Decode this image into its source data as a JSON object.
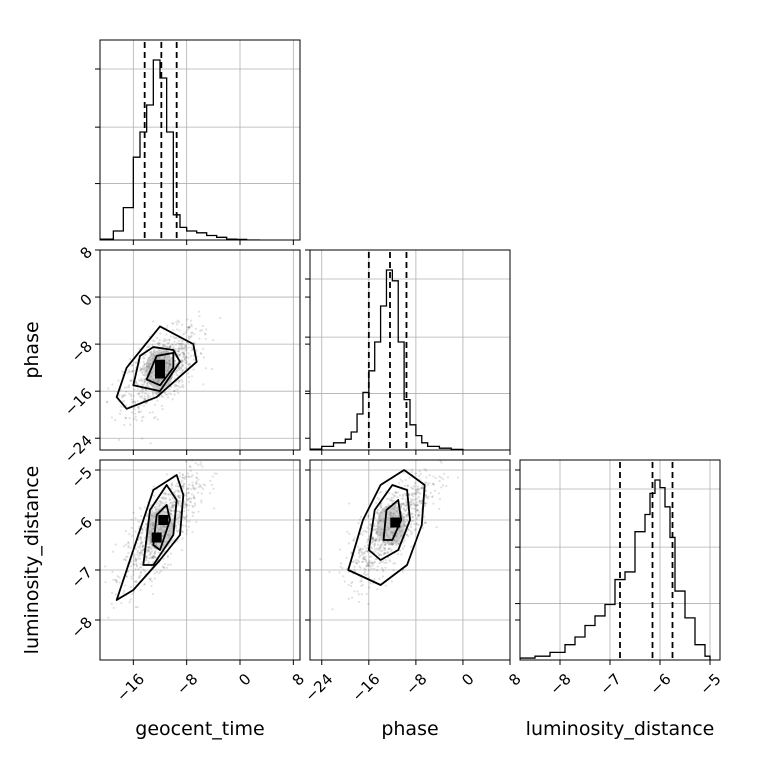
{
  "chart_data": {
    "type": "corner",
    "parameters": [
      "geocent_time",
      "phase",
      "luminosity_distance"
    ],
    "axis_labels": {
      "x": [
        "geocent_time",
        "phase",
        "luminosity_distance"
      ],
      "y": [
        "phase",
        "luminosity_distance"
      ]
    },
    "ranges": {
      "geocent_time": [
        -21,
        9
      ],
      "phase": [
        -26,
        8
      ],
      "luminosity_distance": [
        -8.8,
        -4.8
      ]
    },
    "ticks": {
      "geocent_time": [
        -16,
        -8,
        0,
        8
      ],
      "phase": [
        -24,
        -16,
        -8,
        0,
        8
      ],
      "luminosity_distance": [
        -8,
        -7,
        -6,
        -5
      ]
    },
    "tick_labels": {
      "geocent_time": [
        "−16",
        "−8",
        "0",
        "8"
      ],
      "phase": [
        "−24",
        "−16",
        "−8",
        "0",
        "8"
      ],
      "luminosity_distance": [
        "−8",
        "−7",
        "−6",
        "−5"
      ]
    },
    "grid": true,
    "histograms": [
      {
        "parameter": "geocent_time",
        "bin_edges": [
          -21,
          -19,
          -17.5,
          -16,
          -15,
          -14,
          -13,
          -12,
          -11,
          -10,
          -9,
          -8,
          -6.5,
          -5,
          -3.5,
          -2,
          -0.5,
          1,
          3
        ],
        "counts": [
          0.5,
          5,
          18,
          46,
          60,
          75,
          100,
          90,
          60,
          14,
          7,
          5,
          4,
          2.5,
          1.5,
          0.5,
          0.3,
          0
        ],
        "quantiles": [
          -14.3,
          -11.8,
          -9.5
        ]
      },
      {
        "parameter": "phase",
        "bin_edges": [
          -26,
          -24,
          -22,
          -20,
          -19,
          -18,
          -17,
          -16,
          -15,
          -14,
          -13,
          -12,
          -11,
          -10,
          -9,
          -8,
          -7,
          -6,
          -4,
          -2,
          0
        ],
        "counts": [
          0.5,
          2,
          4,
          6,
          10,
          20,
          32,
          44,
          60,
          80,
          100,
          94,
          60,
          28,
          14,
          8,
          4,
          2,
          1,
          0.3
        ],
        "quantiles": [
          -16,
          -12.4,
          -9.6
        ]
      },
      {
        "parameter": "luminosity_distance",
        "bin_edges": [
          -8.8,
          -8.5,
          -8.2,
          -7.9,
          -7.7,
          -7.5,
          -7.3,
          -7.1,
          -6.9,
          -6.7,
          -6.5,
          -6.3,
          -6.2,
          -6.1,
          -6.0,
          -5.9,
          -5.8,
          -5.7,
          -5.5,
          -5.3,
          -5.1,
          -5.0
        ],
        "counts": [
          1,
          2,
          4,
          8,
          12,
          18,
          23,
          29,
          42,
          46,
          67,
          76,
          87,
          94,
          90,
          80,
          64,
          36,
          22,
          8,
          2
        ],
        "quantiles": [
          -6.8,
          -6.15,
          -5.75
        ]
      }
    ],
    "scatter_2d": [
      {
        "x_parameter": "geocent_time",
        "y_parameter": "phase",
        "center": [
          -11.8,
          -12.4
        ],
        "sigma": [
          2.8,
          3.5
        ],
        "correlation": 0.6,
        "contours": [
          [
            [
              -14,
              -14
            ],
            [
              -12.5,
              -10
            ],
            [
              -10,
              -9.5
            ],
            [
              -10,
              -12
            ],
            [
              -12,
              -15
            ],
            [
              -14,
              -14
            ]
          ],
          [
            [
              -16,
              -15
            ],
            [
              -15,
              -10
            ],
            [
              -13,
              -8.5
            ],
            [
              -10,
              -9
            ],
            [
              -9,
              -11
            ],
            [
              -12,
              -16
            ],
            [
              -16,
              -15
            ]
          ],
          [
            [
              -18.5,
              -17
            ],
            [
              -17,
              -12
            ],
            [
              -12,
              -5
            ],
            [
              -7,
              -8
            ],
            [
              -6.5,
              -11
            ],
            [
              -8,
              -12.5
            ],
            [
              -12.5,
              -17
            ],
            [
              -17,
              -19
            ],
            [
              -18.5,
              -17
            ]
          ]
        ],
        "peak_bins": [
          [
            -12,
            -13
          ],
          [
            -12,
            -11.5
          ]
        ]
      },
      {
        "x_parameter": "geocent_time",
        "y_parameter": "luminosity_distance",
        "center": [
          -11.8,
          -6.15
        ],
        "sigma": [
          2.8,
          0.55
        ],
        "correlation": 0.75,
        "contours": [
          [
            [
              -13,
              -6.5
            ],
            [
              -12.5,
              -5.9
            ],
            [
              -11,
              -5.7
            ],
            [
              -10.5,
              -6.0
            ],
            [
              -12,
              -6.6
            ],
            [
              -13,
              -6.5
            ]
          ],
          [
            [
              -14.5,
              -6.9
            ],
            [
              -13.5,
              -5.8
            ],
            [
              -11,
              -5.3
            ],
            [
              -9.5,
              -5.6
            ],
            [
              -10,
              -6.3
            ],
            [
              -13,
              -6.9
            ],
            [
              -14.5,
              -6.9
            ]
          ],
          [
            [
              -18.5,
              -7.6
            ],
            [
              -16,
              -6.6
            ],
            [
              -13,
              -5.4
            ],
            [
              -9.5,
              -5.1
            ],
            [
              -8.5,
              -5.5
            ],
            [
              -9,
              -6.3
            ],
            [
              -12,
              -6.8
            ],
            [
              -16,
              -7.4
            ],
            [
              -18.5,
              -7.6
            ]
          ]
        ],
        "peak_bins": [
          [
            -11.5,
            -6.0
          ],
          [
            -12.5,
            -6.35
          ]
        ]
      },
      {
        "x_parameter": "phase",
        "y_parameter": "luminosity_distance",
        "center": [
          -12.4,
          -6.15
        ],
        "sigma": [
          3.5,
          0.55
        ],
        "correlation": 0.75,
        "contours": [
          [
            [
              -13.5,
              -6.4
            ],
            [
              -13,
              -5.8
            ],
            [
              -11,
              -5.6
            ],
            [
              -10.5,
              -6.0
            ],
            [
              -12,
              -6.4
            ],
            [
              -13.5,
              -6.4
            ]
          ],
          [
            [
              -16,
              -6.6
            ],
            [
              -15,
              -5.8
            ],
            [
              -12,
              -5.3
            ],
            [
              -9.5,
              -5.4
            ],
            [
              -9,
              -6.0
            ],
            [
              -11,
              -6.6
            ],
            [
              -14,
              -6.8
            ],
            [
              -16,
              -6.6
            ]
          ],
          [
            [
              -19.5,
              -7.0
            ],
            [
              -17,
              -6.0
            ],
            [
              -14,
              -5.3
            ],
            [
              -10,
              -5.0
            ],
            [
              -6.5,
              -5.3
            ],
            [
              -7,
              -6.1
            ],
            [
              -9.5,
              -6.9
            ],
            [
              -14,
              -7.3
            ],
            [
              -19.5,
              -7.0
            ]
          ]
        ],
        "peak_bins": [
          [
            -11.5,
            -6.05
          ]
        ]
      }
    ]
  }
}
